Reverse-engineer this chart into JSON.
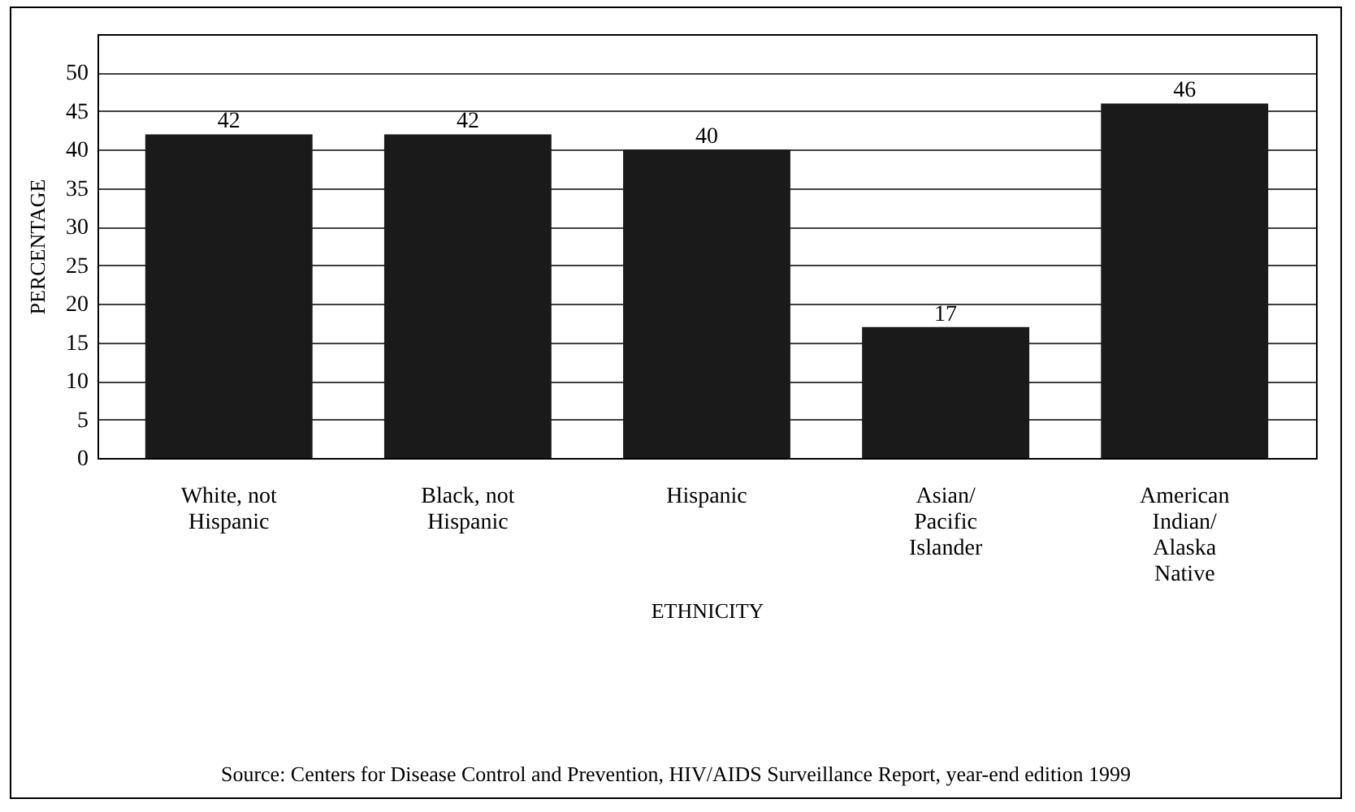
{
  "chart_data": {
    "type": "bar",
    "categories": [
      "White, not Hispanic",
      "Black, not Hispanic",
      "Hispanic",
      "Asian/ Pacific Islander",
      "American Indian/ Alaska Native"
    ],
    "values": [
      42,
      42,
      40,
      17,
      46
    ],
    "color": "#1a1a1a",
    "xlabel": "ETHNICITY",
    "ylabel": "PERCENTAGE",
    "ylim": [
      0,
      55
    ],
    "yticks": [
      0,
      5,
      10,
      15,
      20,
      25,
      30,
      35,
      40,
      45,
      50
    ],
    "grid": "y",
    "data_labels": true,
    "annotations": [
      "Source: Centers for Disease Control and Prevention, HIV/AIDS Surveillance Report, year-end edition 1999"
    ]
  }
}
